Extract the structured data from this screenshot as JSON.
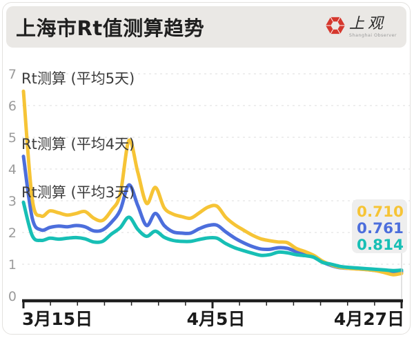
{
  "header": {
    "title": "上海市Rt值测算趋势",
    "logo": {
      "name_cn": "上观",
      "name_en": "Shanghai Observer",
      "icon_color": "#d5382e"
    }
  },
  "chart_data": {
    "type": "line",
    "title": "上海市Rt值测算趋势",
    "x_axis": {
      "tick_labels": [
        "3月15日",
        "4月5日",
        "4月27日"
      ],
      "minor_tick_count": 15,
      "span_days": 43
    },
    "y_axis": {
      "ticks": [
        0,
        1,
        2,
        3,
        4,
        5,
        6,
        7
      ],
      "lim": [
        0,
        7
      ],
      "grid": "dashed"
    },
    "legend_position": "inline-left-of-lines",
    "series": [
      {
        "name": "Rt测算 (平均5天)",
        "color": "#F6C436",
        "end_label": "0.710",
        "values": [
          6.45,
          3.05,
          2.52,
          2.68,
          2.62,
          2.55,
          2.6,
          2.66,
          2.45,
          2.38,
          2.7,
          3.2,
          4.9,
          3.9,
          2.92,
          3.42,
          2.78,
          2.58,
          2.5,
          2.45,
          2.62,
          2.8,
          2.83,
          2.48,
          2.25,
          2.08,
          1.92,
          1.8,
          1.74,
          1.7,
          1.68,
          1.5,
          1.4,
          1.28,
          1.1,
          0.98,
          0.9,
          0.87,
          0.85,
          0.83,
          0.8,
          0.74,
          0.67,
          0.71
        ]
      },
      {
        "name": "Rt测算 (平均4天)",
        "color": "#4C6EDC",
        "end_label": "0.761",
        "values": [
          4.4,
          2.45,
          2.08,
          2.16,
          2.2,
          2.18,
          2.22,
          2.18,
          2.05,
          2.08,
          2.32,
          2.7,
          3.5,
          2.85,
          2.22,
          2.6,
          2.22,
          2.02,
          1.98,
          1.98,
          2.12,
          2.22,
          2.23,
          2.02,
          1.83,
          1.68,
          1.56,
          1.48,
          1.47,
          1.52,
          1.5,
          1.4,
          1.32,
          1.24,
          1.07,
          0.96,
          0.89,
          0.87,
          0.85,
          0.83,
          0.8,
          0.76,
          0.72,
          0.761
        ]
      },
      {
        "name": "Rt测算 (平均3天)",
        "color": "#17BFB5",
        "end_label": "0.814",
        "values": [
          2.95,
          1.9,
          1.75,
          1.82,
          1.79,
          1.82,
          1.84,
          1.8,
          1.7,
          1.72,
          1.95,
          2.15,
          2.48,
          2.1,
          1.88,
          2.04,
          1.85,
          1.75,
          1.72,
          1.72,
          1.78,
          1.83,
          1.82,
          1.65,
          1.52,
          1.43,
          1.35,
          1.28,
          1.3,
          1.38,
          1.36,
          1.3,
          1.27,
          1.22,
          1.06,
          1.0,
          0.93,
          0.9,
          0.88,
          0.86,
          0.84,
          0.82,
          0.8,
          0.814
        ]
      }
    ],
    "colors": {
      "axis": "#1f1f1f",
      "grid": "#e4e4e4",
      "y_label": "#9b9b9b",
      "x_label": "#1b1b1b",
      "series_label": "#3c3c3c",
      "tooltip_bg": "#ededed",
      "indicator": "#cfcfcf"
    }
  }
}
